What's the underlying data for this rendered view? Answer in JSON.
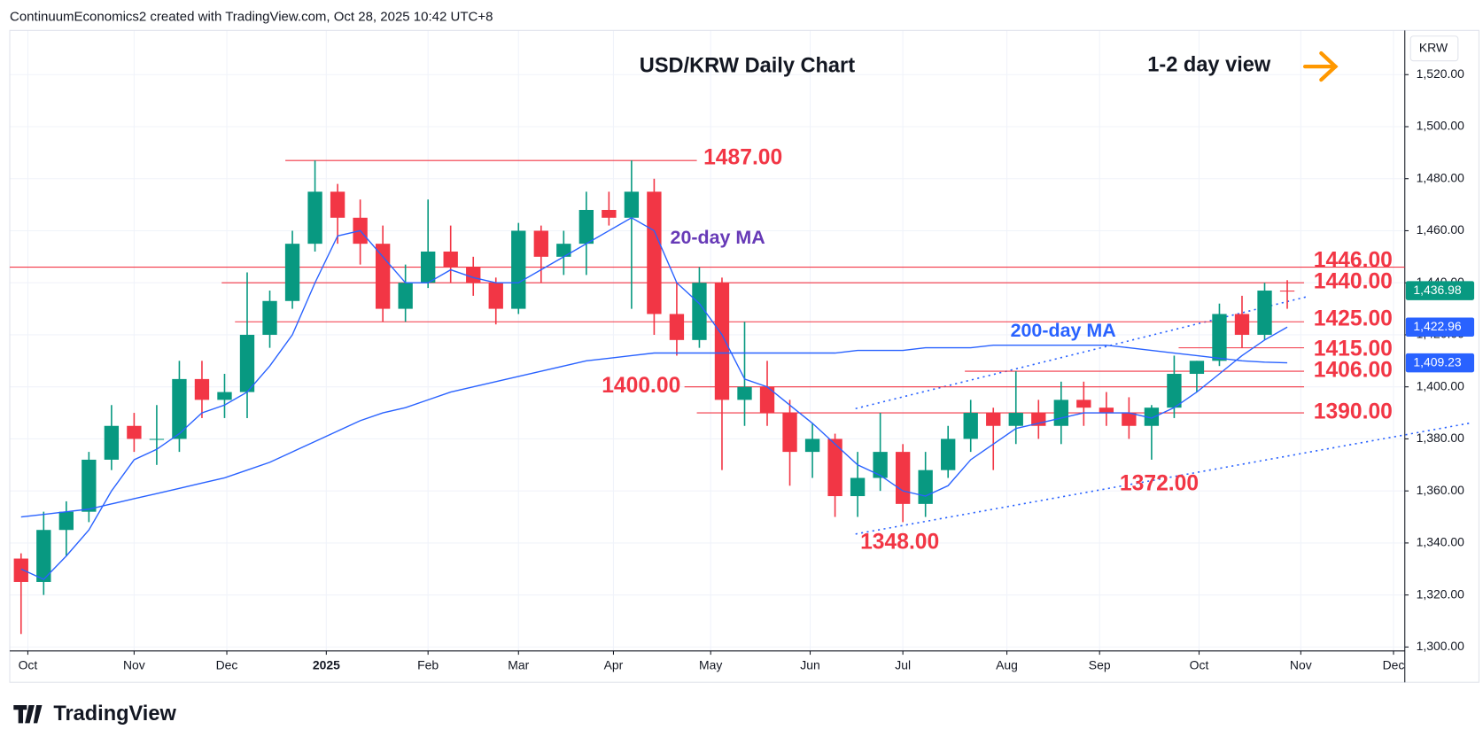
{
  "header": "ContinuumEconomics2 created with TradingView.com, Oct 28, 2025 10:42 UTC+8",
  "brand": "TradingView",
  "chart_data": {
    "type": "candlestick",
    "title": "USD/KRW Daily Chart",
    "subtitle": "1-2 day view",
    "currency": "KRW",
    "up_color": "#089981",
    "down_color": "#f23645",
    "level_color": "#f23645",
    "grid": true,
    "xlim": [
      0,
      61.7
    ],
    "ylim": [
      1298.5,
      1537
    ],
    "xticks": [
      {
        "value": 0.8,
        "label": "Oct"
      },
      {
        "value": 5.5,
        "label": "Nov"
      },
      {
        "value": 9.6,
        "label": "Dec"
      },
      {
        "value": 14.0,
        "label": "2025"
      },
      {
        "value": 18.5,
        "label": "Feb"
      },
      {
        "value": 22.5,
        "label": "Mar"
      },
      {
        "value": 26.7,
        "label": "Apr"
      },
      {
        "value": 31.0,
        "label": "May"
      },
      {
        "value": 35.4,
        "label": "Jun"
      },
      {
        "value": 39.5,
        "label": "Jul"
      },
      {
        "value": 44.1,
        "label": "Aug"
      },
      {
        "value": 48.2,
        "label": "Sep"
      },
      {
        "value": 52.6,
        "label": "Oct"
      },
      {
        "value": 57.1,
        "label": "Nov"
      },
      {
        "value": 61.2,
        "label": "Dec"
      }
    ],
    "yticks": [
      {
        "value": 1300,
        "label": "1,300.00"
      },
      {
        "value": 1320,
        "label": "1,320.00"
      },
      {
        "value": 1340,
        "label": "1,340.00"
      },
      {
        "value": 1360,
        "label": "1,360.00"
      },
      {
        "value": 1380,
        "label": "1,380.00"
      },
      {
        "value": 1400,
        "label": "1,400.00"
      },
      {
        "value": 1420,
        "label": "1,420.00"
      },
      {
        "value": 1440,
        "label": "1,440.00"
      },
      {
        "value": 1460,
        "label": "1,460.00"
      },
      {
        "value": 1480,
        "label": "1,480.00"
      },
      {
        "value": 1500,
        "label": "1,500.00"
      },
      {
        "value": 1520,
        "label": "1,520.00"
      }
    ],
    "open": [
      1334,
      1325,
      1345,
      1352,
      1372,
      1385,
      1380,
      1380,
      1403,
      1395,
      1398,
      1420,
      1433,
      1455,
      1475,
      1465,
      1455,
      1430,
      1440,
      1452,
      1446,
      1440,
      1430,
      1460,
      1450,
      1455,
      1468,
      1465,
      1475,
      1428,
      1418,
      1440,
      1395,
      1400,
      1390,
      1375,
      1380,
      1358,
      1365,
      1375,
      1355,
      1368,
      1380,
      1390,
      1385,
      1390,
      1385,
      1395,
      1392,
      1390,
      1385,
      1392,
      1405,
      1410,
      1428,
      1420,
      1437
    ],
    "high": [
      1336,
      1352,
      1356,
      1375,
      1393,
      1390,
      1393,
      1410,
      1410,
      1405,
      1444,
      1437,
      1460,
      1487,
      1478,
      1472,
      1462,
      1447,
      1472,
      1462,
      1450,
      1442,
      1463,
      1462,
      1460,
      1475,
      1475,
      1487,
      1480,
      1440,
      1446,
      1442,
      1425,
      1410,
      1395,
      1386,
      1382,
      1375,
      1390,
      1378,
      1375,
      1385,
      1395,
      1392,
      1406,
      1395,
      1402,
      1402,
      1398,
      1396,
      1393,
      1412,
      1410,
      1432,
      1435,
      1440,
      1441
    ],
    "low": [
      1305,
      1320,
      1335,
      1348,
      1368,
      1375,
      1370,
      1375,
      1388,
      1388,
      1388,
      1415,
      1430,
      1452,
      1455,
      1447,
      1425,
      1425,
      1438,
      1440,
      1435,
      1424,
      1428,
      1440,
      1443,
      1443,
      1462,
      1430,
      1420,
      1412,
      1415,
      1368,
      1385,
      1385,
      1362,
      1365,
      1350,
      1350,
      1360,
      1348,
      1350,
      1365,
      1375,
      1368,
      1378,
      1380,
      1378,
      1385,
      1385,
      1380,
      1372,
      1388,
      1398,
      1408,
      1415,
      1418,
      1430
    ],
    "close": [
      1325,
      1345,
      1352,
      1372,
      1385,
      1380,
      1380,
      1403,
      1395,
      1398,
      1420,
      1433,
      1455,
      1475,
      1465,
      1455,
      1430,
      1440,
      1452,
      1446,
      1440,
      1430,
      1460,
      1450,
      1455,
      1468,
      1465,
      1475,
      1428,
      1418,
      1440,
      1395,
      1400,
      1390,
      1375,
      1380,
      1358,
      1365,
      1375,
      1355,
      1368,
      1380,
      1390,
      1385,
      1390,
      1385,
      1395,
      1392,
      1390,
      1385,
      1392,
      1405,
      1410,
      1428,
      1420,
      1437,
      1436.98
    ],
    "series": [
      {
        "name": "20-day MA",
        "color": "#2962ff",
        "label_color": "#673ab7",
        "values": [
          1330,
          1326,
          1335,
          1345,
          1360,
          1372,
          1376,
          1382,
          1390,
          1393,
          1398,
          1408,
          1420,
          1440,
          1458,
          1460,
          1450,
          1440,
          1440,
          1445,
          1442,
          1440,
          1440,
          1445,
          1450,
          1455,
          1460,
          1465,
          1460,
          1440,
          1432,
          1420,
          1403,
          1400,
          1393,
          1386,
          1378,
          1370,
          1366,
          1360,
          1358,
          1362,
          1372,
          1378,
          1384,
          1386,
          1388,
          1390,
          1390,
          1390,
          1388,
          1392,
          1398,
          1405,
          1412,
          1418,
          1422.96
        ]
      },
      {
        "name": "200-day MA",
        "color": "#2962ff",
        "label_color": "#2962ff",
        "values": [
          1350,
          1351,
          1352,
          1353,
          1355,
          1357,
          1359,
          1361,
          1363,
          1365,
          1368,
          1371,
          1375,
          1379,
          1383,
          1387,
          1390,
          1392,
          1395,
          1398,
          1400,
          1402,
          1404,
          1406,
          1408,
          1410,
          1411,
          1412,
          1413,
          1413,
          1413,
          1413,
          1413,
          1413,
          1413,
          1413,
          1413,
          1414,
          1414,
          1414,
          1415,
          1415,
          1415,
          1416,
          1416,
          1416,
          1416,
          1416,
          1416,
          1415,
          1414,
          1413,
          1412,
          1411,
          1410,
          1409.5,
          1409.23
        ]
      }
    ],
    "price_labels": [
      {
        "value": 1436.98,
        "label": "1,436.98",
        "color": "#089981"
      },
      {
        "value": 1422.96,
        "label": "1,422.96",
        "color": "#2962ff"
      },
      {
        "value": 1409.23,
        "label": "1,409.23",
        "color": "#2962ff"
      }
    ],
    "levels": [
      {
        "value": 1487,
        "label": "1487.00"
      },
      {
        "value": 1446,
        "label": "1446.00"
      },
      {
        "value": 1440,
        "label": "1440.00"
      },
      {
        "value": 1425,
        "label": "1425.00"
      },
      {
        "value": 1415,
        "label": "1415.00"
      },
      {
        "value": 1406,
        "label": "1406.00"
      },
      {
        "value": 1400,
        "label": "1400.00"
      },
      {
        "value": 1390,
        "label": "1390.00"
      }
    ],
    "lows": [
      {
        "value": 1348,
        "label": "1348.00"
      },
      {
        "value": 1372,
        "label": "1372.00"
      }
    ]
  }
}
